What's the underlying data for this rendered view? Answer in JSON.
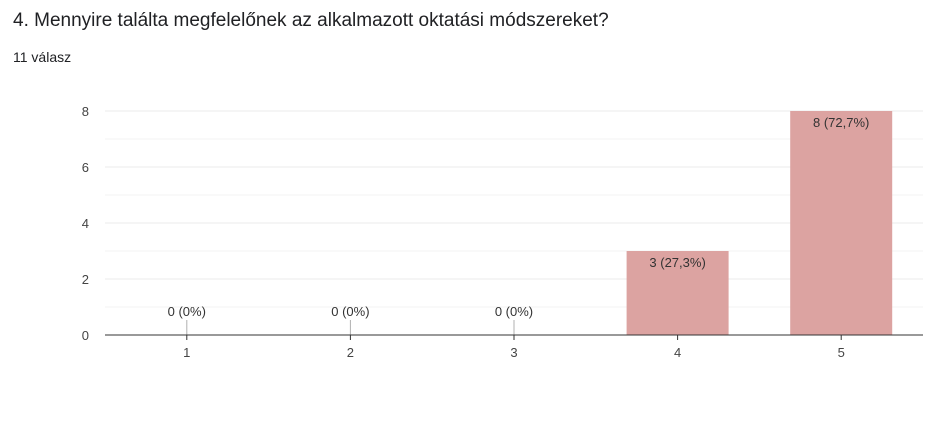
{
  "question": {
    "title": "4. Mennyire találta megfelelőnek az alkalmazott oktatási módszereket?",
    "response_count": "11 válasz"
  },
  "chart_data": {
    "type": "bar",
    "categories": [
      "1",
      "2",
      "3",
      "4",
      "5"
    ],
    "values": [
      0,
      0,
      0,
      3,
      8
    ],
    "data_labels": [
      "0 (0%)",
      "0 (0%)",
      "0 (0%)",
      "3 (27,3%)",
      "8 (72,7%)"
    ],
    "y_ticks": [
      0,
      2,
      4,
      6,
      8
    ],
    "ylim": [
      0,
      8
    ],
    "grid": true,
    "bar_color": "#dca3a1",
    "zero_marker_color": "#b0b0b0",
    "grid_color": "#ebebeb",
    "axis_color": "#333333"
  }
}
